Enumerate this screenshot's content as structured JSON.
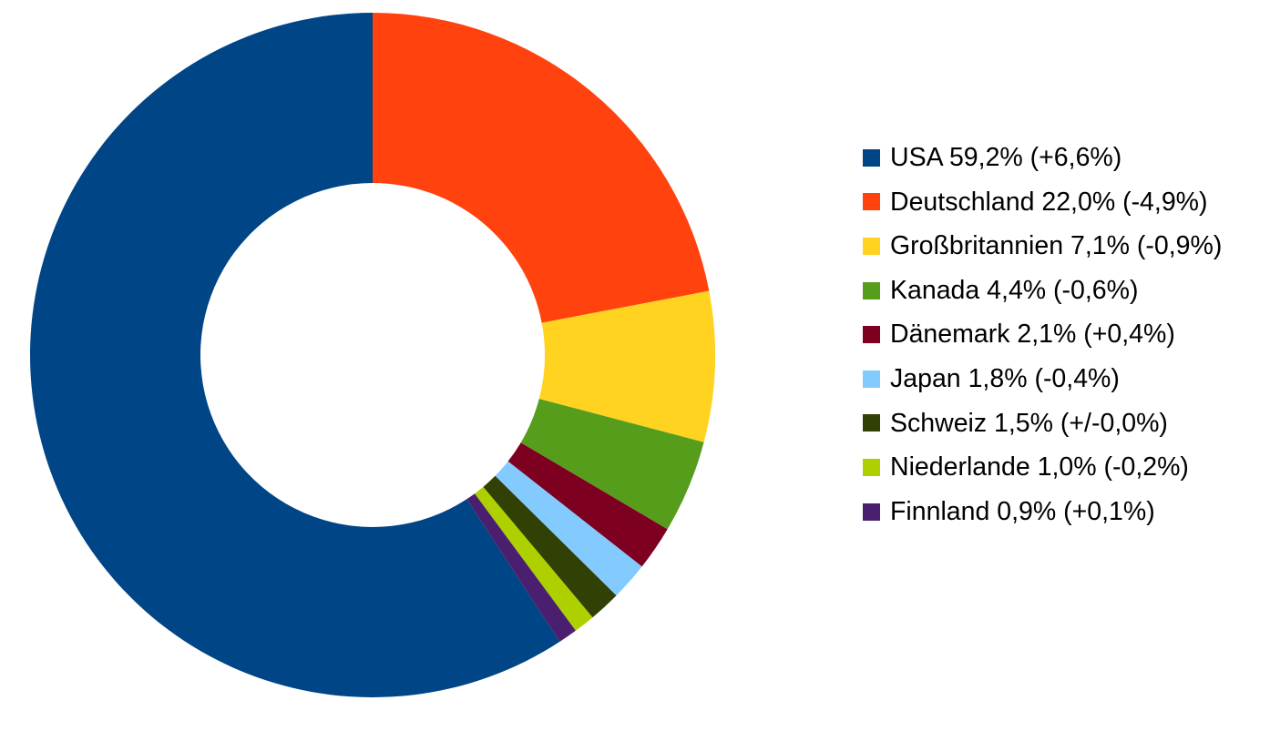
{
  "chart_data": {
    "type": "pie",
    "variant": "donut",
    "categories": [
      "USA",
      "Deutschland",
      "Großbritannien",
      "Kanada",
      "Dänemark",
      "Japan",
      "Schweiz",
      "Niederlande",
      "Finnland"
    ],
    "values": [
      59.2,
      22.0,
      7.1,
      4.4,
      2.1,
      1.8,
      1.5,
      1.0,
      0.9
    ],
    "changes": [
      "+6,6%",
      "-4,9%",
      "-0,9%",
      "-0,6%",
      "+0,4%",
      "-0,4%",
      "+/-0,0%",
      "-0,2%",
      "+0,1%"
    ],
    "colors": [
      "#004586",
      "#ff420e",
      "#ffd320",
      "#579d1c",
      "#7e0021",
      "#83caff",
      "#314004",
      "#aecf00",
      "#4b1f6f"
    ],
    "legend_labels": [
      "USA 59,2% (+6,6%)",
      "Deutschland 22,0% (-4,9%)",
      "Großbritannien 7,1% (-0,9%)",
      "Kanada 4,4% (-0,6%)",
      "Dänemark 2,1% (+0,4%)",
      "Japan 1,8% (-0,4%)",
      "Schweiz 1,5% (+/-0,0%)",
      "Niederlande 1,0% (-0,2%)",
      "Finnland 0,9% (+0,1%)"
    ],
    "legend_position": "right",
    "start": "top",
    "direction": "clockwise, first slice ends at top"
  }
}
